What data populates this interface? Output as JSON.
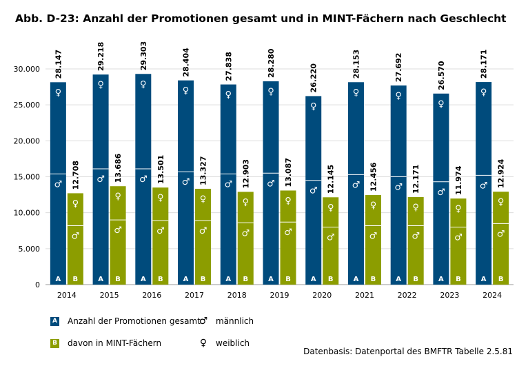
{
  "title": "Abb. D-23: Anzahl der Promotionen gesamt und in MINT-Fächern nach Geschlecht",
  "source": "Datenbasis: Datenportal des BMFTR Tabelle 2.5.81",
  "colors": {
    "gesamt": "#004b7c",
    "mint": "#8c9d00",
    "grid": "#dcdcdc"
  },
  "legend": {
    "gesamt_key": "A",
    "gesamt_label": "Anzahl der Promotionen gesamt",
    "mint_key": "B",
    "mint_label": "davon in MINT-Fächern",
    "male_symbol": "♂",
    "male_label": "männlich",
    "female_symbol": "♀",
    "female_label": "weiblich"
  },
  "chart_data": {
    "type": "bar",
    "stacked": true,
    "categories": [
      "2014",
      "2015",
      "2016",
      "2017",
      "2018",
      "2019",
      "2020",
      "2021",
      "2022",
      "2023",
      "2024"
    ],
    "ylim": [
      0,
      30000
    ],
    "yticks": [
      0,
      5000,
      10000,
      15000,
      20000,
      25000,
      30000
    ],
    "ytick_labels": [
      "0",
      "5.000",
      "10.000",
      "15.000",
      "20.000",
      "25.000",
      "30.000"
    ],
    "grid": true,
    "series": [
      {
        "key": "A",
        "total_labels": [
          "28.147",
          "29.218",
          "29.303",
          "28.404",
          "27.838",
          "28.280",
          "26.220",
          "28.153",
          "27.692",
          "26.570",
          "28.171"
        ],
        "total": [
          28147,
          29218,
          29303,
          28404,
          27838,
          28280,
          26220,
          28153,
          27692,
          26570,
          28171
        ],
        "male": [
          15400,
          16100,
          16100,
          15700,
          15400,
          15500,
          14500,
          15300,
          15000,
          14300,
          15200
        ]
      },
      {
        "key": "B",
        "total_labels": [
          "12.708",
          "13.686",
          "13.501",
          "13.327",
          "12.903",
          "13.087",
          "12.145",
          "12.456",
          "12.171",
          "11.974",
          "12.924"
        ],
        "total": [
          12708,
          13686,
          13501,
          13327,
          12903,
          13087,
          12145,
          12456,
          12171,
          11974,
          12924
        ],
        "male": [
          8200,
          9000,
          8900,
          8900,
          8600,
          8700,
          8000,
          8200,
          8200,
          8000,
          8500
        ]
      }
    ],
    "segment_symbols": {
      "male": "♂",
      "female": "♀"
    }
  }
}
